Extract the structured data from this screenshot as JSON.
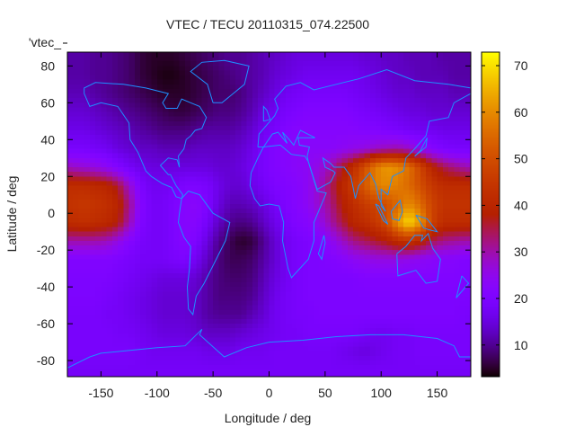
{
  "chart_data": {
    "type": "heatmap",
    "title": "VTEC / TECU 20110315_074.22500",
    "xlabel": "Longitude / deg",
    "ylabel": "Latitude / deg",
    "key_label": "'vtec_",
    "xlim": [
      -180,
      180
    ],
    "ylim": [
      -88.75,
      87.5
    ],
    "xticks": [
      -150,
      -100,
      -50,
      0,
      50,
      100,
      150
    ],
    "yticks": [
      -80,
      -60,
      -40,
      -20,
      0,
      20,
      40,
      60,
      80
    ],
    "colorbar": {
      "range": [
        3.2,
        72.9
      ],
      "ticks": [
        10,
        20,
        30,
        40,
        50,
        60,
        70
      ],
      "colormap": "black-purple-red-yellow"
    },
    "coastline_color": "#1e8fff",
    "grid_lon": [
      -175,
      -165,
      -155,
      -145,
      -135,
      -125,
      -115,
      -105,
      -95,
      -85,
      -75,
      -65,
      -55,
      -45,
      -35,
      -25,
      -15,
      -5,
      5,
      15,
      25,
      35,
      45,
      55,
      65,
      75,
      85,
      95,
      105,
      115,
      125,
      135,
      145,
      155,
      165,
      175
    ],
    "grid_lat": [
      85,
      75,
      65,
      55,
      45,
      35,
      25,
      15,
      5,
      -5,
      -15,
      -25,
      -35,
      -45,
      -55,
      -65,
      -75,
      -85
    ],
    "values": [
      [
        11,
        11,
        10,
        10,
        9,
        8,
        6,
        5,
        5,
        5,
        6,
        7,
        8,
        9,
        10,
        10,
        11,
        12,
        13,
        14,
        15,
        15,
        15,
        15,
        15,
        15,
        14,
        14,
        13,
        13,
        12,
        12,
        12,
        11,
        11,
        11
      ],
      [
        11,
        11,
        10,
        10,
        9,
        8,
        6,
        5,
        4,
        4,
        5,
        6,
        7,
        8,
        9,
        10,
        11,
        12,
        14,
        15,
        16,
        17,
        17,
        17,
        17,
        17,
        16,
        15,
        14,
        13,
        13,
        12,
        12,
        12,
        11,
        11
      ],
      [
        12,
        12,
        11,
        10,
        9,
        8,
        7,
        6,
        5,
        5,
        5,
        6,
        7,
        8,
        8,
        9,
        11,
        13,
        15,
        17,
        18,
        19,
        19,
        19,
        19,
        18,
        17,
        16,
        15,
        14,
        14,
        13,
        13,
        13,
        12,
        12
      ],
      [
        14,
        14,
        13,
        12,
        11,
        10,
        9,
        8,
        7,
        6,
        6,
        7,
        8,
        9,
        9,
        10,
        12,
        15,
        17,
        19,
        20,
        21,
        21,
        21,
        21,
        20,
        19,
        18,
        17,
        16,
        15,
        15,
        14,
        14,
        14,
        14
      ],
      [
        16,
        16,
        15,
        14,
        13,
        12,
        11,
        10,
        9,
        9,
        9,
        10,
        11,
        11,
        11,
        12,
        14,
        17,
        19,
        21,
        22,
        22,
        22,
        22,
        22,
        22,
        21,
        21,
        20,
        19,
        18,
        17,
        17,
        16,
        16,
        16
      ],
      [
        19,
        19,
        18,
        17,
        15,
        14,
        13,
        13,
        12,
        12,
        12,
        13,
        13,
        13,
        13,
        14,
        16,
        19,
        21,
        22,
        23,
        23,
        23,
        23,
        24,
        25,
        26,
        28,
        29,
        30,
        28,
        25,
        22,
        20,
        19,
        19
      ],
      [
        28,
        27,
        26,
        24,
        21,
        18,
        16,
        15,
        15,
        15,
        15,
        15,
        15,
        14,
        14,
        15,
        17,
        19,
        21,
        22,
        23,
        24,
        26,
        30,
        36,
        42,
        50,
        58,
        62,
        60,
        56,
        48,
        40,
        35,
        32,
        30
      ],
      [
        42,
        42,
        41,
        40,
        36,
        28,
        20,
        17,
        17,
        18,
        20,
        20,
        19,
        16,
        14,
        14,
        16,
        18,
        20,
        21,
        22,
        24,
        28,
        34,
        40,
        46,
        52,
        58,
        60,
        58,
        55,
        50,
        45,
        42,
        42,
        42
      ],
      [
        44,
        45,
        44,
        43,
        40,
        32,
        22,
        18,
        18,
        20,
        22,
        23,
        20,
        15,
        12,
        12,
        13,
        15,
        18,
        20,
        22,
        24,
        28,
        32,
        38,
        42,
        46,
        48,
        50,
        55,
        60,
        55,
        48,
        44,
        44,
        44
      ],
      [
        42,
        43,
        42,
        41,
        38,
        30,
        21,
        18,
        18,
        20,
        22,
        22,
        18,
        13,
        10,
        9,
        10,
        13,
        16,
        19,
        21,
        22,
        25,
        30,
        35,
        40,
        42,
        45,
        50,
        62,
        70,
        62,
        48,
        42,
        42,
        42
      ],
      [
        30,
        30,
        30,
        29,
        26,
        22,
        19,
        18,
        18,
        20,
        22,
        20,
        15,
        10,
        7,
        5,
        6,
        10,
        14,
        17,
        19,
        20,
        21,
        24,
        28,
        32,
        34,
        36,
        38,
        42,
        44,
        40,
        35,
        32,
        31,
        30
      ],
      [
        21,
        21,
        21,
        21,
        20,
        19,
        18,
        18,
        18,
        19,
        20,
        17,
        13,
        9,
        7,
        7,
        8,
        11,
        14,
        17,
        19,
        20,
        20,
        21,
        22,
        24,
        25,
        26,
        26,
        26,
        25,
        24,
        23,
        22,
        22,
        21
      ],
      [
        20,
        20,
        20,
        20,
        19,
        18,
        17,
        16,
        15,
        15,
        15,
        14,
        11,
        9,
        8,
        8,
        9,
        12,
        15,
        17,
        19,
        20,
        20,
        20,
        20,
        20,
        21,
        21,
        21,
        21,
        21,
        21,
        21,
        21,
        21,
        20
      ],
      [
        20,
        20,
        20,
        19,
        18,
        17,
        16,
        15,
        14,
        14,
        14,
        13,
        11,
        9,
        9,
        9,
        10,
        13,
        16,
        18,
        19,
        20,
        20,
        20,
        20,
        20,
        20,
        20,
        20,
        20,
        20,
        20,
        20,
        20,
        20,
        20
      ],
      [
        19,
        19,
        19,
        18,
        18,
        17,
        16,
        15,
        14,
        14,
        14,
        13,
        11,
        10,
        10,
        10,
        12,
        14,
        17,
        18,
        19,
        19,
        20,
        20,
        20,
        20,
        20,
        20,
        20,
        20,
        20,
        20,
        20,
        20,
        20,
        19
      ],
      [
        19,
        19,
        19,
        19,
        18,
        18,
        17,
        16,
        15,
        15,
        15,
        14,
        13,
        13,
        13,
        14,
        15,
        16,
        17,
        18,
        18,
        19,
        19,
        19,
        19,
        19,
        18,
        17,
        17,
        18,
        18,
        19,
        19,
        19,
        19,
        19
      ],
      [
        19,
        19,
        19,
        19,
        19,
        19,
        18,
        17,
        17,
        17,
        17,
        17,
        16,
        16,
        16,
        17,
        17,
        17,
        18,
        18,
        18,
        18,
        18,
        18,
        17,
        16,
        15,
        16,
        17,
        18,
        18,
        19,
        19,
        19,
        19,
        19
      ],
      [
        18,
        18,
        18,
        18,
        18,
        18,
        18,
        18,
        18,
        18,
        18,
        18,
        18,
        18,
        18,
        18,
        18,
        18,
        18,
        18,
        18,
        18,
        18,
        18,
        18,
        18,
        18,
        18,
        18,
        18,
        18,
        18,
        18,
        18,
        18,
        18
      ]
    ]
  }
}
